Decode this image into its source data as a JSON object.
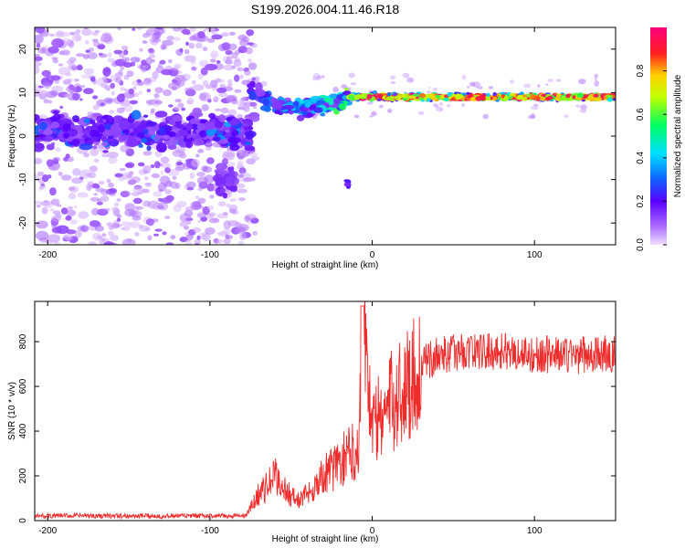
{
  "figure_title": "S199.2026.004.11.46.R18",
  "colors": {
    "trace": "#ee2c2c",
    "axis": "#000000",
    "background": "#ffffff"
  },
  "chart_data": [
    {
      "type": "heatmap",
      "name": "spectrogram",
      "title": "",
      "xlabel": "Height of straight line (km)",
      "ylabel": "Frequency (Hz)",
      "xlim": [
        -208,
        150
      ],
      "ylim": [
        -25,
        25
      ],
      "xticks": [
        -200,
        -100,
        0,
        100
      ],
      "yticks": [
        -20,
        -10,
        0,
        10,
        20
      ],
      "colorscale": "rainbow (purple -> blue -> cyan -> green -> yellow -> red -> magenta)",
      "features": [
        {
          "description": "noise band",
          "x_range": [
            -208,
            -75
          ],
          "frequency_center_hz": 1,
          "frequency_width_hz": 6,
          "peak_amplitude": 0.35
        },
        {
          "description": "clustered energy",
          "x_range": [
            -95,
            -85
          ],
          "frequency_center_hz": -10,
          "peak_amplitude": 0.15
        },
        {
          "description": "tone onset",
          "x_range": [
            -75,
            -15
          ],
          "frequency_start_hz": 10,
          "frequency_dip_hz": 5,
          "peak_amplitude": 0.5
        },
        {
          "description": "stable tone",
          "x_range": [
            -15,
            150
          ],
          "frequency_hz": 9,
          "peak_amplitude": 1.0
        },
        {
          "description": "isolated blob",
          "x": -15,
          "frequency_hz": -11,
          "peak_amplitude": 0.25
        }
      ]
    },
    {
      "type": "colorbar",
      "name": "amplitude-colorbar",
      "label": "Normalized spectral amplitude",
      "ylim": [
        0.0,
        1.0
      ],
      "ticks": [
        0.0,
        0.2,
        0.4,
        0.6,
        0.8
      ],
      "tick_labels": [
        "0.0",
        "0.2",
        "0.4",
        "0.6",
        "0.8"
      ]
    },
    {
      "type": "line",
      "name": "snr-plot",
      "title": "",
      "xlabel": "Height of straight line (km)",
      "ylabel": "SNR (10 * v/v)",
      "xlim": [
        -208,
        150
      ],
      "ylim": [
        0,
        980
      ],
      "xticks": [
        -200,
        -100,
        0,
        100
      ],
      "yticks": [
        0,
        200,
        400,
        600,
        800
      ],
      "series": [
        {
          "name": "SNR",
          "x": [
            -208,
            -180,
            -150,
            -120,
            -100,
            -85,
            -78,
            -75,
            -70,
            -65,
            -60,
            -55,
            -50,
            -45,
            -40,
            -35,
            -30,
            -25,
            -20,
            -15,
            -8,
            -6,
            0,
            10,
            20,
            30,
            40,
            50,
            60,
            70,
            80,
            90,
            100,
            110,
            120,
            130,
            140,
            150
          ],
          "y": [
            20,
            22,
            20,
            21,
            20,
            20,
            22,
            55,
            120,
            150,
            200,
            150,
            110,
            90,
            120,
            160,
            200,
            230,
            260,
            290,
            340,
            960,
            420,
            510,
            600,
            690,
            740,
            750,
            760,
            755,
            760,
            750,
            740,
            745,
            740,
            740,
            745,
            740
          ]
        }
      ]
    }
  ]
}
